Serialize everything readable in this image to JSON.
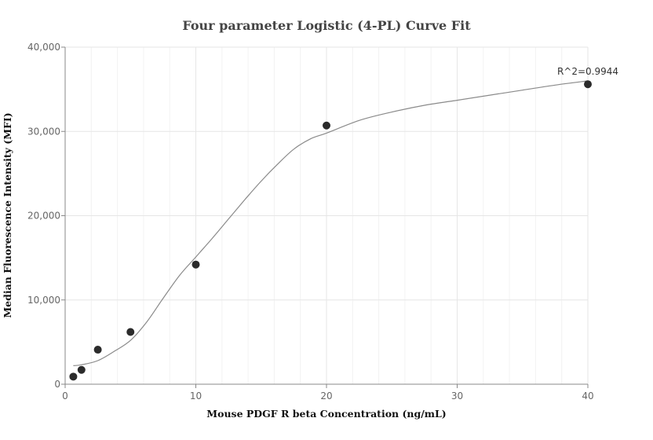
{
  "chart_data": {
    "type": "scatter",
    "title": "Four parameter Logistic (4-PL) Curve Fit",
    "xlabel": "Mouse PDGF R beta Concentration (ng/mL)",
    "ylabel": "Median Fluorescence Intensity (MFI)",
    "xlim": [
      0,
      40
    ],
    "ylim": [
      0,
      40000
    ],
    "x_ticks": [
      0,
      10,
      20,
      30,
      40
    ],
    "x_tick_labels": [
      "0",
      "10",
      "20",
      "30",
      "40"
    ],
    "y_ticks": [
      0,
      10000,
      20000,
      30000,
      40000
    ],
    "y_tick_labels": [
      "0",
      "10,000",
      "20,000",
      "30,000",
      "40,000"
    ],
    "grid": true,
    "annotation": "R^2=0.9944",
    "colors": {
      "points": "#2b2b2b",
      "curve": "#8a8a8a",
      "grid": "#e6e6e6",
      "axis": "#888888"
    },
    "series": [
      {
        "kind": "points",
        "x": [
          0.625,
          1.25,
          2.5,
          5,
          10,
          20,
          40
        ],
        "y": [
          900,
          1700,
          4100,
          6200,
          14200,
          30700,
          35600
        ]
      },
      {
        "kind": "fit-curve",
        "x": [
          0.625,
          1.25,
          2.5,
          3.75,
          5,
          6.25,
          7.5,
          8.75,
          10,
          11.25,
          12.5,
          13.75,
          15,
          16.25,
          17.5,
          18.75,
          20,
          22.5,
          25,
          27.5,
          30,
          32.5,
          35,
          37.5,
          40
        ],
        "y": [
          2200,
          2300,
          2800,
          3900,
          5200,
          7400,
          10200,
          12900,
          15100,
          17300,
          19600,
          21900,
          24100,
          26100,
          27900,
          29100,
          29800,
          31300,
          32300,
          33100,
          33700,
          34300,
          34900,
          35500,
          36000
        ]
      }
    ]
  }
}
